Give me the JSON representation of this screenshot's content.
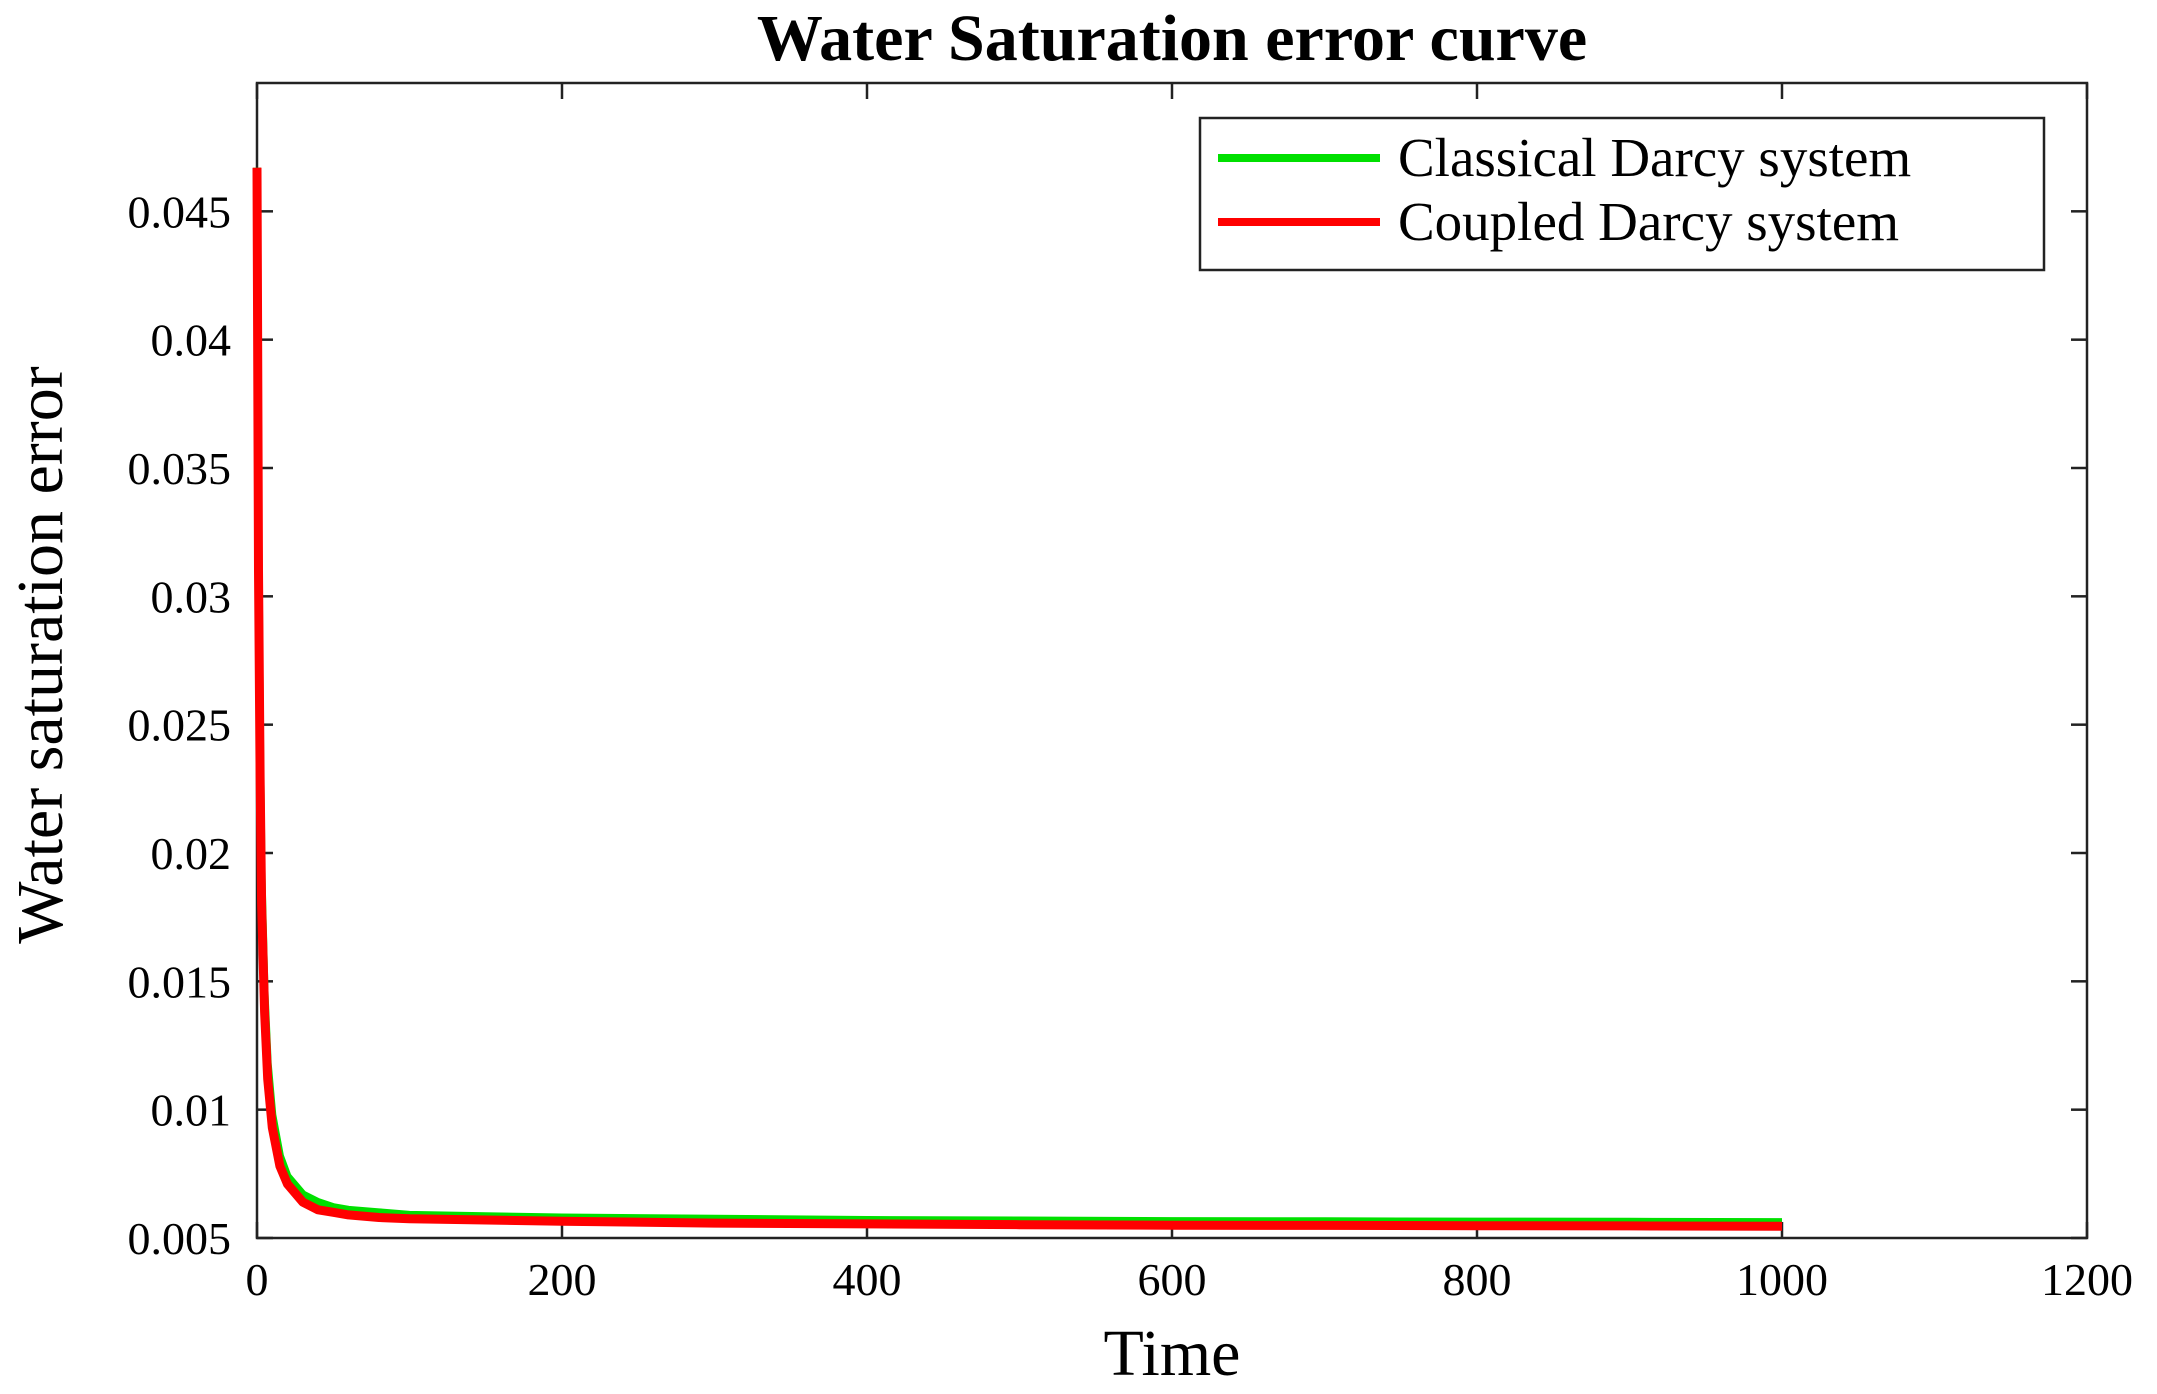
{
  "chart_data": {
    "type": "line",
    "title": "Water Saturation error curve",
    "xlabel": "Time",
    "ylabel": "Water saturation error",
    "xlim": [
      0,
      1200
    ],
    "ylim": [
      0.005,
      0.05
    ],
    "xticks": [
      0,
      200,
      400,
      600,
      800,
      1000,
      1200
    ],
    "xtick_labels": [
      "0",
      "200",
      "400",
      "600",
      "800",
      "1000",
      "1200"
    ],
    "yticks": [
      0.005,
      0.01,
      0.015,
      0.02,
      0.025,
      0.03,
      0.035,
      0.04,
      0.045
    ],
    "ytick_labels": [
      "0.005",
      "0.01",
      "0.015",
      "0.02",
      "0.025",
      "0.03",
      "0.035",
      "0.04",
      "0.045"
    ],
    "grid": false,
    "legend_position": "top-right",
    "series": [
      {
        "name": "Classical Darcy system",
        "color": "#00e000",
        "x": [
          0,
          1,
          2,
          3,
          5,
          7,
          10,
          15,
          20,
          30,
          40,
          50,
          60,
          80,
          100,
          150,
          200,
          300,
          400,
          500,
          600,
          700,
          800,
          900,
          1000
        ],
        "y": [
          0.0467,
          0.032,
          0.024,
          0.019,
          0.0145,
          0.0118,
          0.0098,
          0.0082,
          0.0074,
          0.0067,
          0.0064,
          0.0062,
          0.0061,
          0.006,
          0.0059,
          0.00585,
          0.0058,
          0.00575,
          0.0057,
          0.00568,
          0.00566,
          0.00565,
          0.00564,
          0.00563,
          0.00562
        ]
      },
      {
        "name": "Coupled Darcy system",
        "color": "#ff0000",
        "x": [
          0,
          1,
          2,
          3,
          5,
          7,
          10,
          15,
          20,
          30,
          40,
          50,
          60,
          80,
          100,
          150,
          200,
          300,
          400,
          500,
          600,
          700,
          800,
          900,
          1000
        ],
        "y": [
          0.0467,
          0.031,
          0.023,
          0.018,
          0.0138,
          0.0112,
          0.0093,
          0.0078,
          0.0071,
          0.0064,
          0.0061,
          0.006,
          0.0059,
          0.0058,
          0.00575,
          0.0057,
          0.00565,
          0.00558,
          0.00555,
          0.00552,
          0.0055,
          0.00549,
          0.00548,
          0.00547,
          0.00546
        ]
      }
    ]
  }
}
